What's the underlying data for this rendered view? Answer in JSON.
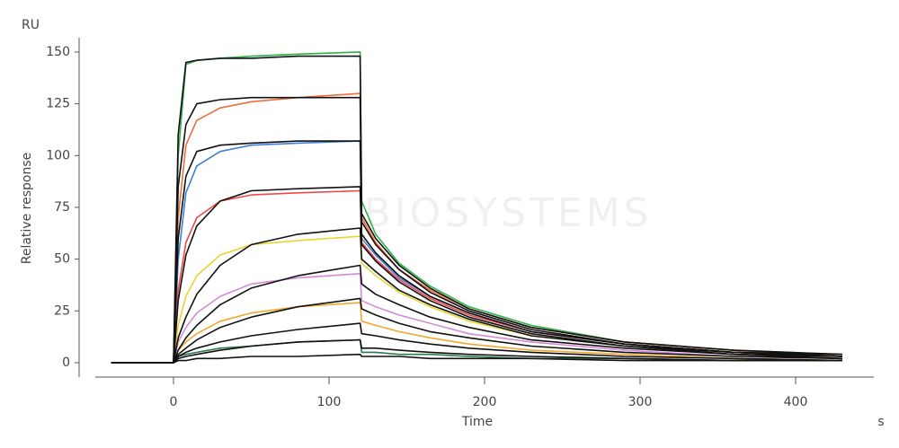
{
  "chart_data": {
    "type": "line",
    "watermark": "BIOSYSTEMS",
    "y_unit": "RU",
    "ylabel": "Relative response",
    "xlabel": "Time",
    "x_unit": "s",
    "x": [
      -40,
      0,
      3,
      8,
      15,
      30,
      50,
      80,
      120,
      121,
      130,
      145,
      165,
      190,
      230,
      290,
      360,
      430
    ],
    "xlim": [
      -50,
      450
    ],
    "xticks": [
      0,
      100,
      200,
      300,
      400
    ],
    "ylim": [
      -7,
      157
    ],
    "yticks": [
      0,
      25,
      50,
      75,
      100,
      125,
      150
    ],
    "grid": false,
    "series": [
      {
        "color": "#2db34a",
        "values": [
          0,
          0,
          100,
          144,
          146,
          147,
          148,
          149,
          150,
          78,
          62,
          48,
          37,
          27,
          18,
          10,
          6,
          4
        ]
      },
      {
        "color": "#f26b3a",
        "values": [
          0,
          0,
          70,
          105,
          117,
          123,
          126,
          128,
          130,
          70,
          58,
          45,
          35,
          26,
          17,
          10,
          6,
          3
        ]
      },
      {
        "color": "#3d7fd9",
        "values": [
          0,
          0,
          50,
          82,
          95,
          102,
          105,
          106,
          107,
          60,
          52,
          41,
          32,
          24,
          15,
          9,
          5,
          3
        ]
      },
      {
        "color": "#f04848",
        "values": [
          0,
          0,
          35,
          58,
          70,
          78,
          81,
          82,
          83,
          58,
          50,
          40,
          31,
          23,
          15,
          9,
          5,
          3
        ]
      },
      {
        "color": "#e8d530",
        "values": [
          0,
          0,
          18,
          32,
          42,
          52,
          57,
          59,
          61,
          48,
          42,
          34,
          27,
          20,
          13,
          8,
          4,
          2
        ]
      },
      {
        "color": "#d58ad9",
        "values": [
          0,
          0,
          10,
          17,
          24,
          32,
          38,
          41,
          43,
          30,
          27,
          23,
          19,
          14,
          10,
          6,
          3,
          2
        ]
      },
      {
        "color": "#f0a830",
        "values": [
          0,
          0,
          6,
          10,
          14,
          20,
          24,
          27,
          29,
          20,
          18,
          15,
          12,
          9,
          6,
          4,
          2,
          1
        ]
      },
      {
        "color": "#2f7a4a",
        "values": [
          0,
          0,
          3,
          4,
          5,
          7,
          8,
          10,
          11,
          5,
          5,
          4,
          4,
          3,
          2,
          2,
          1,
          1
        ]
      },
      {
        "color": "#111111",
        "values": [
          0,
          0,
          110,
          145,
          146,
          147,
          147,
          148,
          148,
          72,
          60,
          47,
          36,
          26,
          17,
          10,
          6,
          4
        ]
      },
      {
        "color": "#111111",
        "values": [
          0,
          0,
          85,
          115,
          125,
          127,
          128,
          128,
          128,
          68,
          57,
          45,
          34,
          25,
          16,
          9,
          5,
          4
        ]
      },
      {
        "color": "#111111",
        "values": [
          0,
          0,
          60,
          90,
          102,
          105,
          106,
          107,
          107,
          62,
          53,
          42,
          32,
          24,
          15,
          9,
          5,
          3
        ]
      },
      {
        "color": "#111111",
        "values": [
          0,
          0,
          30,
          52,
          66,
          78,
          83,
          84,
          85,
          57,
          49,
          39,
          30,
          22,
          14,
          8,
          5,
          3
        ]
      },
      {
        "color": "#111111",
        "values": [
          0,
          0,
          12,
          22,
          33,
          47,
          57,
          62,
          65,
          50,
          44,
          35,
          28,
          21,
          13,
          8,
          4,
          3
        ]
      },
      {
        "color": "#111111",
        "values": [
          0,
          0,
          6,
          12,
          18,
          28,
          36,
          42,
          47,
          38,
          33,
          28,
          22,
          17,
          11,
          7,
          4,
          2
        ]
      },
      {
        "color": "#111111",
        "values": [
          0,
          0,
          4,
          7,
          11,
          17,
          22,
          27,
          31,
          26,
          23,
          19,
          15,
          12,
          8,
          5,
          3,
          2
        ]
      },
      {
        "color": "#111111",
        "values": [
          0,
          0,
          3,
          5,
          7,
          10,
          13,
          16,
          19,
          14,
          13,
          11,
          9,
          7,
          5,
          3,
          2,
          1
        ]
      },
      {
        "color": "#111111",
        "values": [
          0,
          0,
          2,
          3,
          4,
          6,
          8,
          10,
          11,
          7,
          7,
          6,
          5,
          4,
          3,
          2,
          1,
          1
        ]
      },
      {
        "color": "#111111",
        "values": [
          0,
          0,
          1,
          1,
          2,
          2,
          3,
          3,
          4,
          3,
          3,
          3,
          2,
          2,
          2,
          1,
          1,
          1
        ]
      }
    ]
  }
}
